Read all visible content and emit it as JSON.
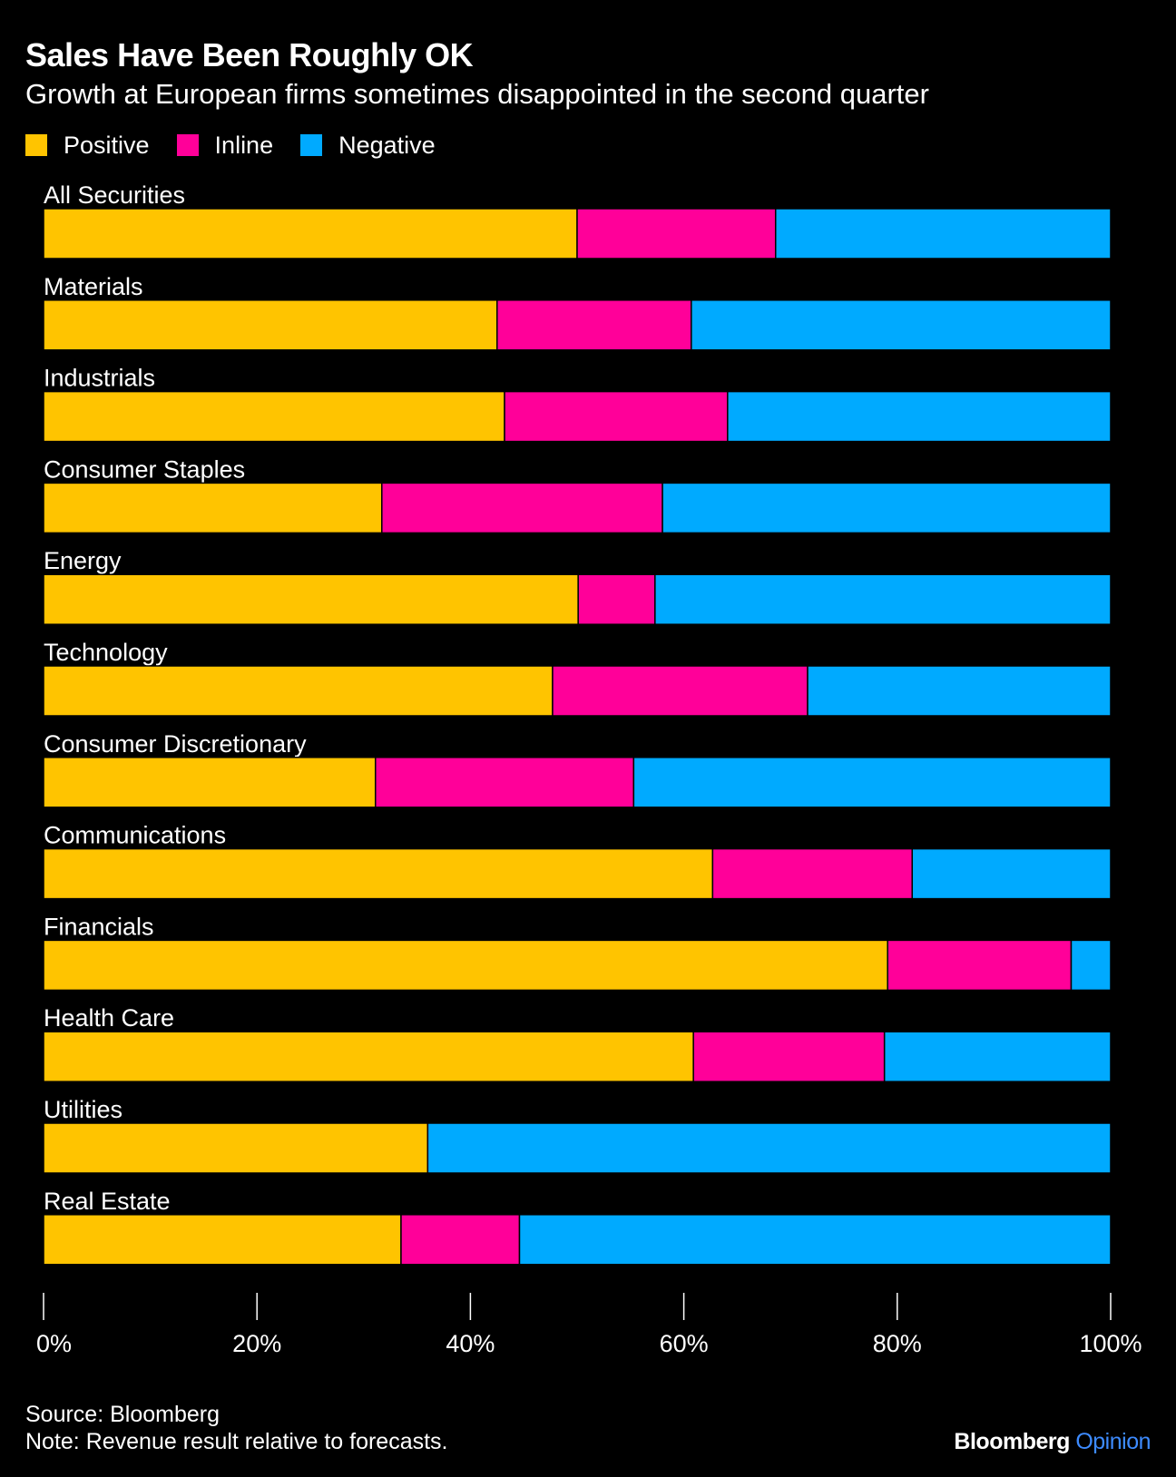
{
  "header": {
    "title": "Sales Have Been Roughly OK",
    "subtitle": "Growth at European firms sometimes disappointed in the second quarter"
  },
  "legend": {
    "items": [
      {
        "label": "Positive",
        "color": "#ffc400"
      },
      {
        "label": "Inline",
        "color": "#ff0099"
      },
      {
        "label": "Negative",
        "color": "#00aaff"
      }
    ]
  },
  "chart_data": {
    "type": "bar",
    "orientation": "horizontal",
    "stacked": true,
    "normalized": true,
    "title": "Sales Have Been Roughly OK",
    "subtitle": "Growth at European firms sometimes disappointed in the second quarter",
    "categories": [
      "All Securities",
      "Materials",
      "Industrials",
      "Consumer Staples",
      "Energy",
      "Technology",
      "Consumer Discretionary",
      "Communications",
      "Financials",
      "Health Care",
      "Utilities",
      "Real Estate"
    ],
    "series": [
      {
        "name": "Positive",
        "color": "#ffc400",
        "values": [
          50,
          42.5,
          43.2,
          31.7,
          50.1,
          47.7,
          31.1,
          62.7,
          79.1,
          60.9,
          36.0,
          33.5
        ]
      },
      {
        "name": "Inline",
        "color": "#ff0099",
        "values": [
          18.6,
          18.2,
          20.9,
          26.3,
          7.2,
          23.9,
          24.2,
          18.7,
          17.2,
          17.9,
          0,
          11.1
        ]
      },
      {
        "name": "Negative",
        "color": "#00aaff",
        "values": [
          31.4,
          39.3,
          35.9,
          42.0,
          42.7,
          28.4,
          44.7,
          18.6,
          3.7,
          21.2,
          64.0,
          55.4
        ]
      }
    ],
    "xaxis": {
      "ticks": [
        "0%",
        "20%",
        "40%",
        "60%",
        "80%",
        "100%"
      ],
      "range": [
        0,
        100
      ]
    },
    "grid": false,
    "legend_position": "top-left"
  },
  "footer": {
    "source": "Source: Bloomberg",
    "note": "Note: Revenue result relative to forecasts.",
    "brand_main": "Bloomberg",
    "brand_accent": "Opinion",
    "brand_accent_color": "#3d8bff"
  }
}
